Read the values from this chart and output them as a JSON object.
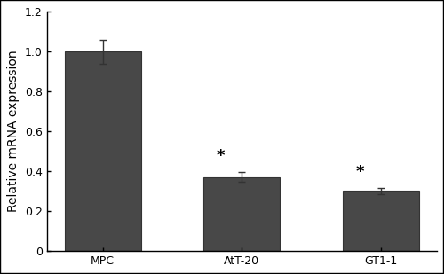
{
  "categories": [
    "MPC",
    "AtT-20",
    "GT1-1"
  ],
  "values": [
    1.0,
    0.37,
    0.3
  ],
  "errors": [
    0.06,
    0.025,
    0.015
  ],
  "bar_color": "#484848",
  "ylim": [
    0,
    1.2
  ],
  "yticks": [
    0,
    0.2,
    0.4,
    0.6,
    0.8,
    1.0,
    1.2
  ],
  "ylabel": "Relative mRNA expression",
  "significance": [
    false,
    true,
    true
  ],
  "sig_symbol": "*",
  "sig_fontsize": 13,
  "bar_width": 0.55,
  "background_color": "#ffffff",
  "edge_color": "#333333",
  "tick_fontsize": 9,
  "label_fontsize": 10,
  "fig_border": true
}
